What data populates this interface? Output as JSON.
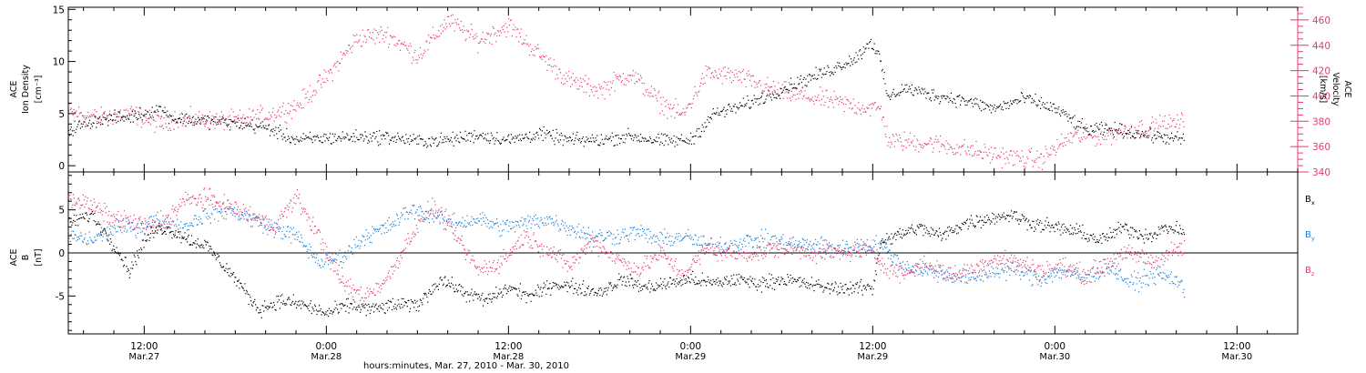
{
  "colors": {
    "black": "#000000",
    "red": "#e8386a",
    "blue": "#1a7fd6",
    "frame": "#000000"
  },
  "xaxis": {
    "ticks": [
      {
        "t": 12,
        "time": "12:00",
        "date": "Mar.27"
      },
      {
        "t": 24,
        "time": "0:00",
        "date": "Mar.28"
      },
      {
        "t": 36,
        "time": "12:00",
        "date": "Mar.28"
      },
      {
        "t": 48,
        "time": "0:00",
        "date": "Mar.29"
      },
      {
        "t": 60,
        "time": "12:00",
        "date": "Mar.29"
      },
      {
        "t": 72,
        "time": "0:00",
        "date": "Mar.30"
      },
      {
        "t": 84,
        "time": "12:00",
        "date": "Mar.30"
      }
    ],
    "xlabel": "hours:minutes, Mar. 27, 2010 - Mar. 30, 2010"
  },
  "chart_data": [
    {
      "type": "scatter",
      "title": "",
      "xlabel": "hours:minutes, Mar. 27, 2010 - Mar. 30, 2010",
      "xlim_hours": [
        7,
        88
      ],
      "left_axis": {
        "label_lines": [
          "ACE",
          "Ion Density",
          "[cm⁻³]"
        ],
        "ylim": [
          -0.6,
          15.2
        ],
        "ticks": [
          "0",
          "5",
          "10",
          "15"
        ],
        "tick_values": [
          0,
          5,
          10,
          15
        ]
      },
      "right_axis": {
        "label_lines": [
          "ACE",
          "Velocity",
          "[km/s]"
        ],
        "ylim": [
          340,
          470
        ],
        "ticks": [
          "340",
          "360",
          "380",
          "400",
          "420",
          "440",
          "460"
        ],
        "tick_values": [
          340,
          360,
          380,
          400,
          420,
          440,
          460
        ]
      },
      "series": [
        {
          "color": "black",
          "axis": "left",
          "x": [
            7,
            9,
            11,
            13,
            14,
            16,
            18,
            20,
            22,
            24,
            26,
            28,
            30,
            32,
            34,
            36,
            38,
            40,
            42,
            44,
            46,
            48,
            49.5,
            51,
            53,
            55,
            57,
            59,
            59.8,
            60.3,
            61,
            62,
            64,
            66,
            68,
            70,
            72,
            74,
            76,
            78,
            80.5
          ],
          "y": [
            3.5,
            4.5,
            4.7,
            5.5,
            4.5,
            4.4,
            4.1,
            3.7,
            2.5,
            2.7,
            2.8,
            2.8,
            2.4,
            2.5,
            3.0,
            2.5,
            3.1,
            2.5,
            2.5,
            2.9,
            2.4,
            2.5,
            5.0,
            5.6,
            6.7,
            8.0,
            9.1,
            10.5,
            12.0,
            11.0,
            6.5,
            7.5,
            6.8,
            6.3,
            5.5,
            6.5,
            5.5,
            3.5,
            3.5,
            3.0,
            2.5
          ]
        },
        {
          "color": "red",
          "axis": "right",
          "x": [
            7,
            9,
            11,
            13,
            14,
            16,
            18,
            20,
            22,
            24,
            26,
            28,
            30,
            32,
            34,
            36,
            38,
            40,
            42,
            44,
            46,
            47.5,
            49,
            51,
            53,
            55,
            57,
            59,
            60.5,
            61,
            64,
            67,
            69,
            71,
            73,
            75,
            77,
            79,
            80.5
          ],
          "y": [
            388,
            383,
            387,
            378,
            383,
            381,
            381,
            385,
            392,
            415,
            446,
            449,
            432,
            460,
            444,
            456,
            433,
            412,
            405,
            418,
            395,
            385,
            418,
            416,
            407,
            401,
            397,
            392,
            390,
            365,
            363,
            356,
            352,
            350,
            368,
            369,
            374,
            377,
            380
          ]
        }
      ]
    },
    {
      "type": "scatter",
      "title": "",
      "xlabel": "hours:minutes, Mar. 27, 2010 - Mar. 30, 2010",
      "xlim_hours": [
        7,
        88
      ],
      "left_axis": {
        "label_lines": [
          "ACE",
          "B",
          "[nT]"
        ],
        "ylim": [
          -9.4,
          9.4
        ],
        "ticks": [
          "-5",
          "0",
          "5"
        ],
        "tick_values": [
          -5,
          0,
          5
        ]
      },
      "zero_line": true,
      "legend_placement": "right",
      "series": [
        {
          "name": "Bx",
          "legend": {
            "base": "B",
            "sub": "x"
          },
          "color": "black",
          "x": [
            7,
            8.5,
            10,
            11,
            12,
            13,
            14,
            15,
            16,
            18,
            19.5,
            21,
            22.5,
            24,
            25.5,
            27,
            28.5,
            30,
            31.5,
            33,
            34.5,
            36,
            37.5,
            39,
            40.5,
            42,
            43.5,
            45,
            46.5,
            48,
            49.5,
            51,
            52.5,
            54,
            55.5,
            57,
            58.5,
            60,
            60.5,
            61.5,
            63,
            64.5,
            66,
            67.5,
            69,
            70.5,
            72,
            73.5,
            75,
            76.5,
            78,
            79.5,
            80.5
          ],
          "y": [
            3.5,
            4.5,
            1.0,
            -2.0,
            1.5,
            3.0,
            2.5,
            1.5,
            1.0,
            -3.0,
            -6.5,
            -5.5,
            -6.0,
            -7.0,
            -6.0,
            -6.5,
            -6.0,
            -6.0,
            -3.0,
            -4.5,
            -5.5,
            -4.0,
            -5.0,
            -3.5,
            -4.0,
            -4.5,
            -3.0,
            -4.0,
            -3.5,
            -3.0,
            -3.5,
            -3.0,
            -3.5,
            -3.0,
            -3.5,
            -4.0,
            -4.0,
            -4.0,
            1.5,
            2.0,
            3.0,
            2.0,
            3.5,
            4.0,
            4.5,
            3.5,
            3.0,
            2.5,
            1.5,
            3.0,
            2.0,
            3.0,
            2.5
          ]
        },
        {
          "name": "By",
          "legend": {
            "base": "B",
            "sub": "y"
          },
          "color": "blue",
          "x": [
            7,
            8.5,
            10,
            11.5,
            13,
            14.5,
            16,
            17.5,
            19,
            20.5,
            22,
            23.5,
            25,
            26.5,
            28,
            29.5,
            31,
            32.5,
            34,
            35.5,
            37,
            38.5,
            40,
            41.5,
            43,
            44.5,
            46,
            47.5,
            49,
            50.5,
            52,
            53.5,
            55,
            56.5,
            58,
            59.5,
            60.5,
            62,
            63.5,
            65,
            66.5,
            68,
            69.5,
            71,
            72.5,
            74,
            75.5,
            77,
            78.5,
            80,
            80.5
          ],
          "y": [
            2.0,
            1.5,
            3.0,
            3.0,
            4.0,
            3.0,
            4.5,
            5.0,
            4.0,
            3.0,
            2.0,
            -1.0,
            -0.5,
            2.0,
            3.0,
            5.0,
            4.5,
            3.5,
            4.0,
            3.0,
            3.5,
            4.0,
            3.0,
            2.0,
            2.0,
            2.5,
            1.5,
            2.0,
            1.0,
            1.0,
            1.5,
            1.5,
            1.0,
            1.0,
            0.5,
            1.0,
            1.0,
            -1.5,
            -2.0,
            -2.5,
            -3.0,
            -2.0,
            -2.0,
            -3.0,
            -2.0,
            -3.0,
            -1.5,
            -3.5,
            -2.5,
            -3.0,
            -4.5
          ]
        },
        {
          "name": "Bz",
          "legend": {
            "base": "B",
            "sub": "z"
          },
          "color": "red",
          "x": [
            7,
            8.5,
            10,
            11.5,
            13,
            14.5,
            16,
            17.5,
            19,
            20.5,
            22,
            23.5,
            25,
            26.5,
            28,
            29.5,
            31,
            32.5,
            34,
            35.5,
            37,
            38.5,
            40,
            41.5,
            43,
            44.5,
            46,
            47.5,
            49,
            50.5,
            52,
            53.5,
            55,
            56.5,
            58,
            59.5,
            60.5,
            62,
            63.5,
            65,
            66.5,
            68,
            69.5,
            71,
            72.5,
            74,
            75.5,
            77,
            78.5,
            80,
            80.5
          ],
          "y": [
            6.5,
            5.5,
            4.0,
            3.5,
            3.0,
            6.0,
            6.5,
            5.5,
            4.5,
            3.0,
            6.5,
            2.0,
            -3.5,
            -5.0,
            -3.0,
            2.0,
            5.5,
            2.0,
            -2.0,
            -1.0,
            2.0,
            0.5,
            -1.5,
            1.5,
            -0.5,
            -2.0,
            0.0,
            -2.5,
            0.5,
            0.0,
            0.0,
            0.5,
            0.5,
            0.0,
            0.0,
            0.5,
            -1.0,
            -2.5,
            -1.0,
            -2.5,
            -2.0,
            -0.5,
            -1.0,
            -2.0,
            -1.5,
            -2.5,
            -1.0,
            0.0,
            -1.0,
            0.5,
            0.5
          ]
        }
      ]
    }
  ]
}
